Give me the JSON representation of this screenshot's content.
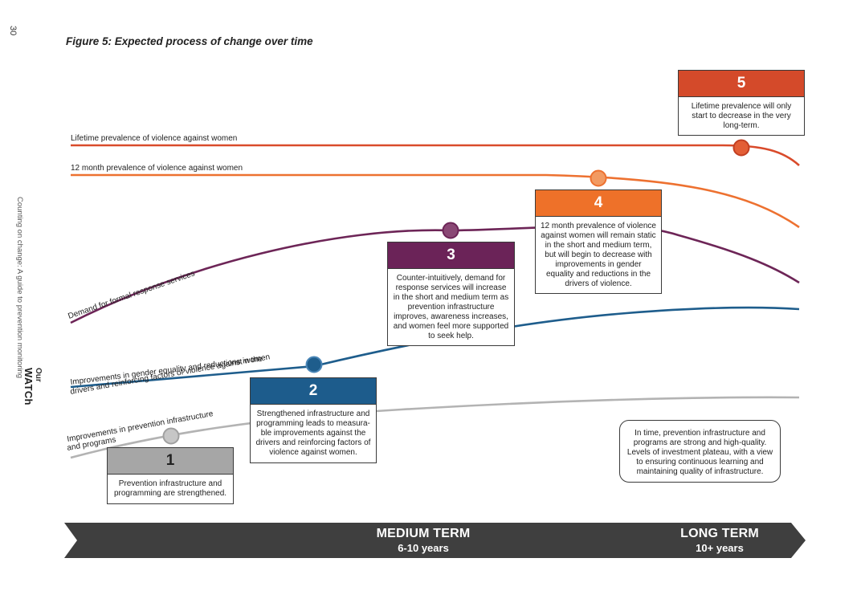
{
  "page": {
    "number": "30",
    "figure_title": "Figure 5: Expected process of change over time",
    "side_text": "Counting on change: A guide to prevention monitoring",
    "logo_line1": "Our",
    "logo_line2": "WATCh"
  },
  "lines": {
    "lifetime": {
      "label": "Lifetime prevalence of violence against women",
      "color": "#d94b2b"
    },
    "twelve_month": {
      "label": "12 month prevalence of violence against women",
      "color": "#ed7130"
    },
    "demand": {
      "label": "Demand for formal response services",
      "color": "#6d2557"
    },
    "gender": {
      "label_line1": "Improvements in gender equality and reductions in the",
      "label_line2": "drivers and reinforcing factors of violence against women",
      "color": "#1e5d8c"
    },
    "infrastructure": {
      "label_line1": "Improvements in prevention infrastructure",
      "label_line2": "and programs",
      "color": "#b3b3b3"
    }
  },
  "stages": [
    {
      "number": "1",
      "text": "Prevention infrastructure and programming are strengthened.",
      "color": "#a6a6a6"
    },
    {
      "number": "2",
      "text": "Strengthened infrastructure and programming leads to measura-ble improvements against the drivers and reinforcing factors of violence against women.",
      "color": "#1d5c8c"
    },
    {
      "number": "3",
      "text": "Counter-intuitively, demand for response services will increase in the short and medium term as prevention infrastructure improves, awareness increases, and women feel more supported to seek help.",
      "color": "#6b2358"
    },
    {
      "number": "4",
      "text": "12 month prevalence of violence against women will remain static in the short and medium term, but will begin to decrease with improvements in gender equality and reductions in the drivers of violence.",
      "color": "#ee7129"
    },
    {
      "number": "5",
      "text": "Lifetime prevalence will only start to decrease in the very long-term.",
      "color": "#d44a2a"
    }
  ],
  "note": "In time, prevention infrastructure and programs are strong and high-quality. Levels of investment plateau, with a view to ensuring continuous learning and maintaining quality of infrastructure.",
  "timeline": {
    "bar_color": "#3f3f3f",
    "medium": {
      "title": "MEDIUM TERM",
      "years": "6-10 years"
    },
    "long": {
      "title": "LONG TERM",
      "years": "10+ years"
    }
  }
}
